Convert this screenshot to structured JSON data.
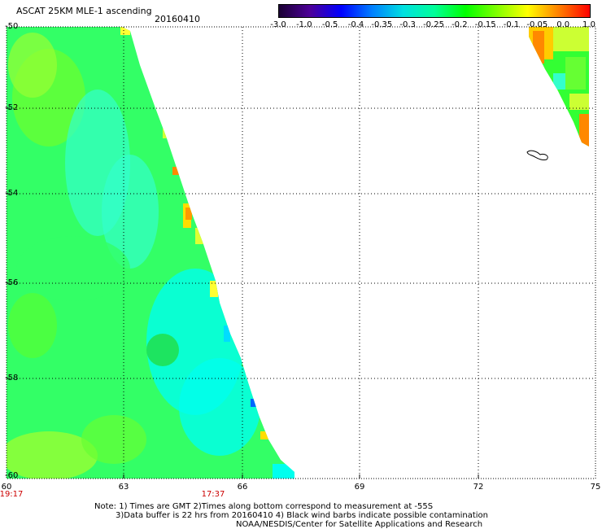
{
  "header": {
    "title": "ASCAT 25KM MLE-1 ascending",
    "date": "20160410"
  },
  "colorbar": {
    "ticks": [
      "-3.0",
      "-1.0",
      "-0.5",
      "-0.4",
      "-0.35",
      "-0.3",
      "-0.25",
      "-0.2",
      "-0.15",
      "-0.1",
      "-0.05",
      "0.0",
      "1.0"
    ],
    "colors": [
      "#1a0033",
      "#4d0099",
      "#0000ff",
      "#0080ff",
      "#00e0e0",
      "#00ff99",
      "#00ff00",
      "#80ff00",
      "#ffff00",
      "#ff8000",
      "#ff0000"
    ]
  },
  "axes": {
    "y_labels": [
      "-50",
      "-52",
      "-54",
      "-56",
      "-58",
      "-60"
    ],
    "x_labels": [
      "60",
      "63",
      "66",
      "69",
      "72",
      "75"
    ],
    "time_labels": [
      "19:17",
      "17:37"
    ],
    "time_color": "#cc0000"
  },
  "notes": {
    "line1": "Note: 1) Times are GMT 2)Times along bottom correspond to measurement at -55S",
    "line2": "3)Data buffer is 22 hrs from 20160410 4) Black wind barbs indicate possible contamination",
    "line3": "NOAA/NESDIS/Center for Satellite Applications and Research"
  }
}
